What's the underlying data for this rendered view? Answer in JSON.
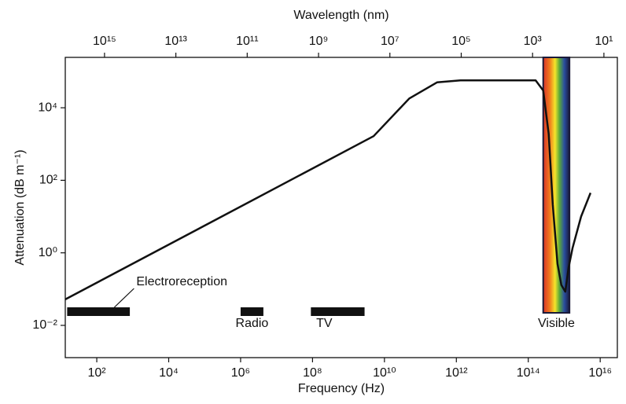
{
  "chart_data": {
    "type": "line",
    "x_label": "Frequency (Hz)",
    "y_label": "Attenuation (dB m⁻¹)",
    "x2_label": "Wavelength (nm)",
    "x": [
      13.3,
      5000000000.0,
      49000000000.0,
      290000000000.0,
      1300000000000.0,
      160000000000000.0,
      260000000000000.0,
      370000000000000.0,
      480000000000000.0,
      650000000000000.0,
      830000000000000.0,
      1070000000000000.0,
      1320000000000000.0,
      1700000000000000.0,
      2950000000000000.0,
      5400000000000000.0
    ],
    "values": [
      0.052,
      1650,
      18000,
      50000,
      57000,
      57000,
      30000,
      1900,
      21,
      0.5,
      0.13,
      0.085,
      0.39,
      1.35,
      10,
      45
    ],
    "color": "#111111",
    "xlog": true,
    "ylog": true,
    "xlim": [
      13.3,
      3e+16
    ],
    "ylim": [
      0.00129,
      245000
    ],
    "x2lim": [
      1.26e+16,
      4.2
    ],
    "xticks": [
      {
        "value": 100.0,
        "label": "10²"
      },
      {
        "value": 10000.0,
        "label": "10⁴"
      },
      {
        "value": 1000000.0,
        "label": "10⁶"
      },
      {
        "value": 100000000.0,
        "label": "10⁸"
      },
      {
        "value": 10000000000.0,
        "label": "10¹⁰"
      },
      {
        "value": 1000000000000.0,
        "label": "10¹²"
      },
      {
        "value": 100000000000000.0,
        "label": "10¹⁴"
      },
      {
        "value": 1e+16,
        "label": "10¹⁶"
      }
    ],
    "yticks": [
      {
        "value": 0.01,
        "label": "10⁻²"
      },
      {
        "value": 1,
        "label": "10⁰"
      },
      {
        "value": 100,
        "label": "10²"
      },
      {
        "value": 10000,
        "label": "10⁴"
      }
    ],
    "x2ticks": [
      {
        "value": 1000000000000000.0,
        "label": "10¹⁵"
      },
      {
        "value": 10000000000000.0,
        "label": "10¹³"
      },
      {
        "value": 100000000000.0,
        "label": "10¹¹"
      },
      {
        "value": 1000000000.0,
        "label": "10⁹"
      },
      {
        "value": 10000000.0,
        "label": "10⁷"
      },
      {
        "value": 100000.0,
        "label": "10⁵"
      },
      {
        "value": 1000.0,
        "label": "10³"
      },
      {
        "value": 10,
        "label": "10¹"
      }
    ],
    "bands": [
      {
        "label": "Electroreception",
        "range": [
          15,
          830
        ]
      },
      {
        "label": "Radio",
        "range": [
          1000000.0,
          4300000.0
        ]
      },
      {
        "label": "TV",
        "range": [
          90000000.0,
          2800000000.0
        ]
      },
      {
        "label": "Visible",
        "range": [
          260000000000000.0,
          1400000000000000.0
        ]
      }
    ]
  }
}
